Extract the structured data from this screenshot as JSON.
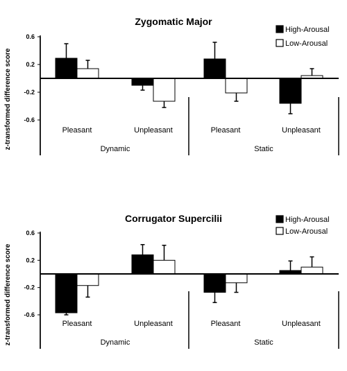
{
  "chart_data": [
    {
      "type": "bar",
      "title": "Zygomatic Major",
      "ylabel": "z-transformed difference score",
      "ylim": [
        -0.6,
        0.6
      ],
      "yticks": [
        "0.6",
        "0.2",
        "-0.2",
        "-0.6"
      ],
      "categories": [
        "Pleasant",
        "Unpleasant",
        "Pleasant",
        "Unpleasant"
      ],
      "groups": [
        "Dynamic",
        "Static"
      ],
      "series": [
        {
          "name": "High-Arousal",
          "color": "#000000",
          "values": [
            0.29,
            -0.1,
            0.28,
            -0.36
          ],
          "errors": [
            0.21,
            0.07,
            0.24,
            0.15
          ]
        },
        {
          "name": "Low-Arousal",
          "color": "#ffffff",
          "values": [
            0.14,
            -0.33,
            -0.21,
            0.04
          ],
          "errors": [
            0.12,
            0.09,
            0.12,
            0.1
          ]
        }
      ],
      "legend": "top-right"
    },
    {
      "type": "bar",
      "title": "Corrugator Supercilii",
      "ylabel": "z-transformed difference score",
      "ylim": [
        -0.6,
        0.6
      ],
      "yticks": [
        "0.6",
        "0.2",
        "-0.2",
        "-0.6"
      ],
      "categories": [
        "Pleasant",
        "Unpleasant",
        "Pleasant",
        "Unpleasant"
      ],
      "groups": [
        "Dynamic",
        "Static"
      ],
      "series": [
        {
          "name": "High-Arousal",
          "color": "#000000",
          "values": [
            -0.57,
            0.28,
            -0.27,
            0.05
          ],
          "errors": [
            0.03,
            0.15,
            0.15,
            0.14
          ]
        },
        {
          "name": "Low-Arousal",
          "color": "#ffffff",
          "values": [
            -0.17,
            0.2,
            -0.13,
            0.1
          ],
          "errors": [
            0.17,
            0.22,
            0.14,
            0.15
          ]
        }
      ],
      "legend": "top-right"
    }
  ]
}
